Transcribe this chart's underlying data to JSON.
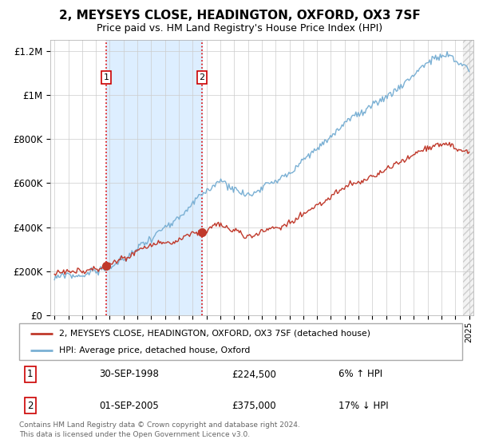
{
  "title": "2, MEYSEYS CLOSE, HEADINGTON, OXFORD, OX3 7SF",
  "subtitle": "Price paid vs. HM Land Registry's House Price Index (HPI)",
  "legend_line1": "2, MEYSEYS CLOSE, HEADINGTON, OXFORD, OX3 7SF (detached house)",
  "legend_line2": "HPI: Average price, detached house, Oxford",
  "sale1_date": "30-SEP-1998",
  "sale1_price": "£224,500",
  "sale1_hpi": "6% ↑ HPI",
  "sale2_date": "01-SEP-2005",
  "sale2_price": "£375,000",
  "sale2_hpi": "17% ↓ HPI",
  "footer": "Contains HM Land Registry data © Crown copyright and database right 2024.\nThis data is licensed under the Open Government Licence v3.0.",
  "sale1_year": 1998.75,
  "sale2_year": 2005.67,
  "sale1_price_val": 224500,
  "sale2_price_val": 375000,
  "hpi_color": "#7ab0d4",
  "price_color": "#c0392b",
  "shading_color": "#ddeeff",
  "grid_color": "#cccccc",
  "ylim_min": 0,
  "ylim_max": 1250000,
  "xlim_min": 1994.7,
  "xlim_max": 2025.3
}
